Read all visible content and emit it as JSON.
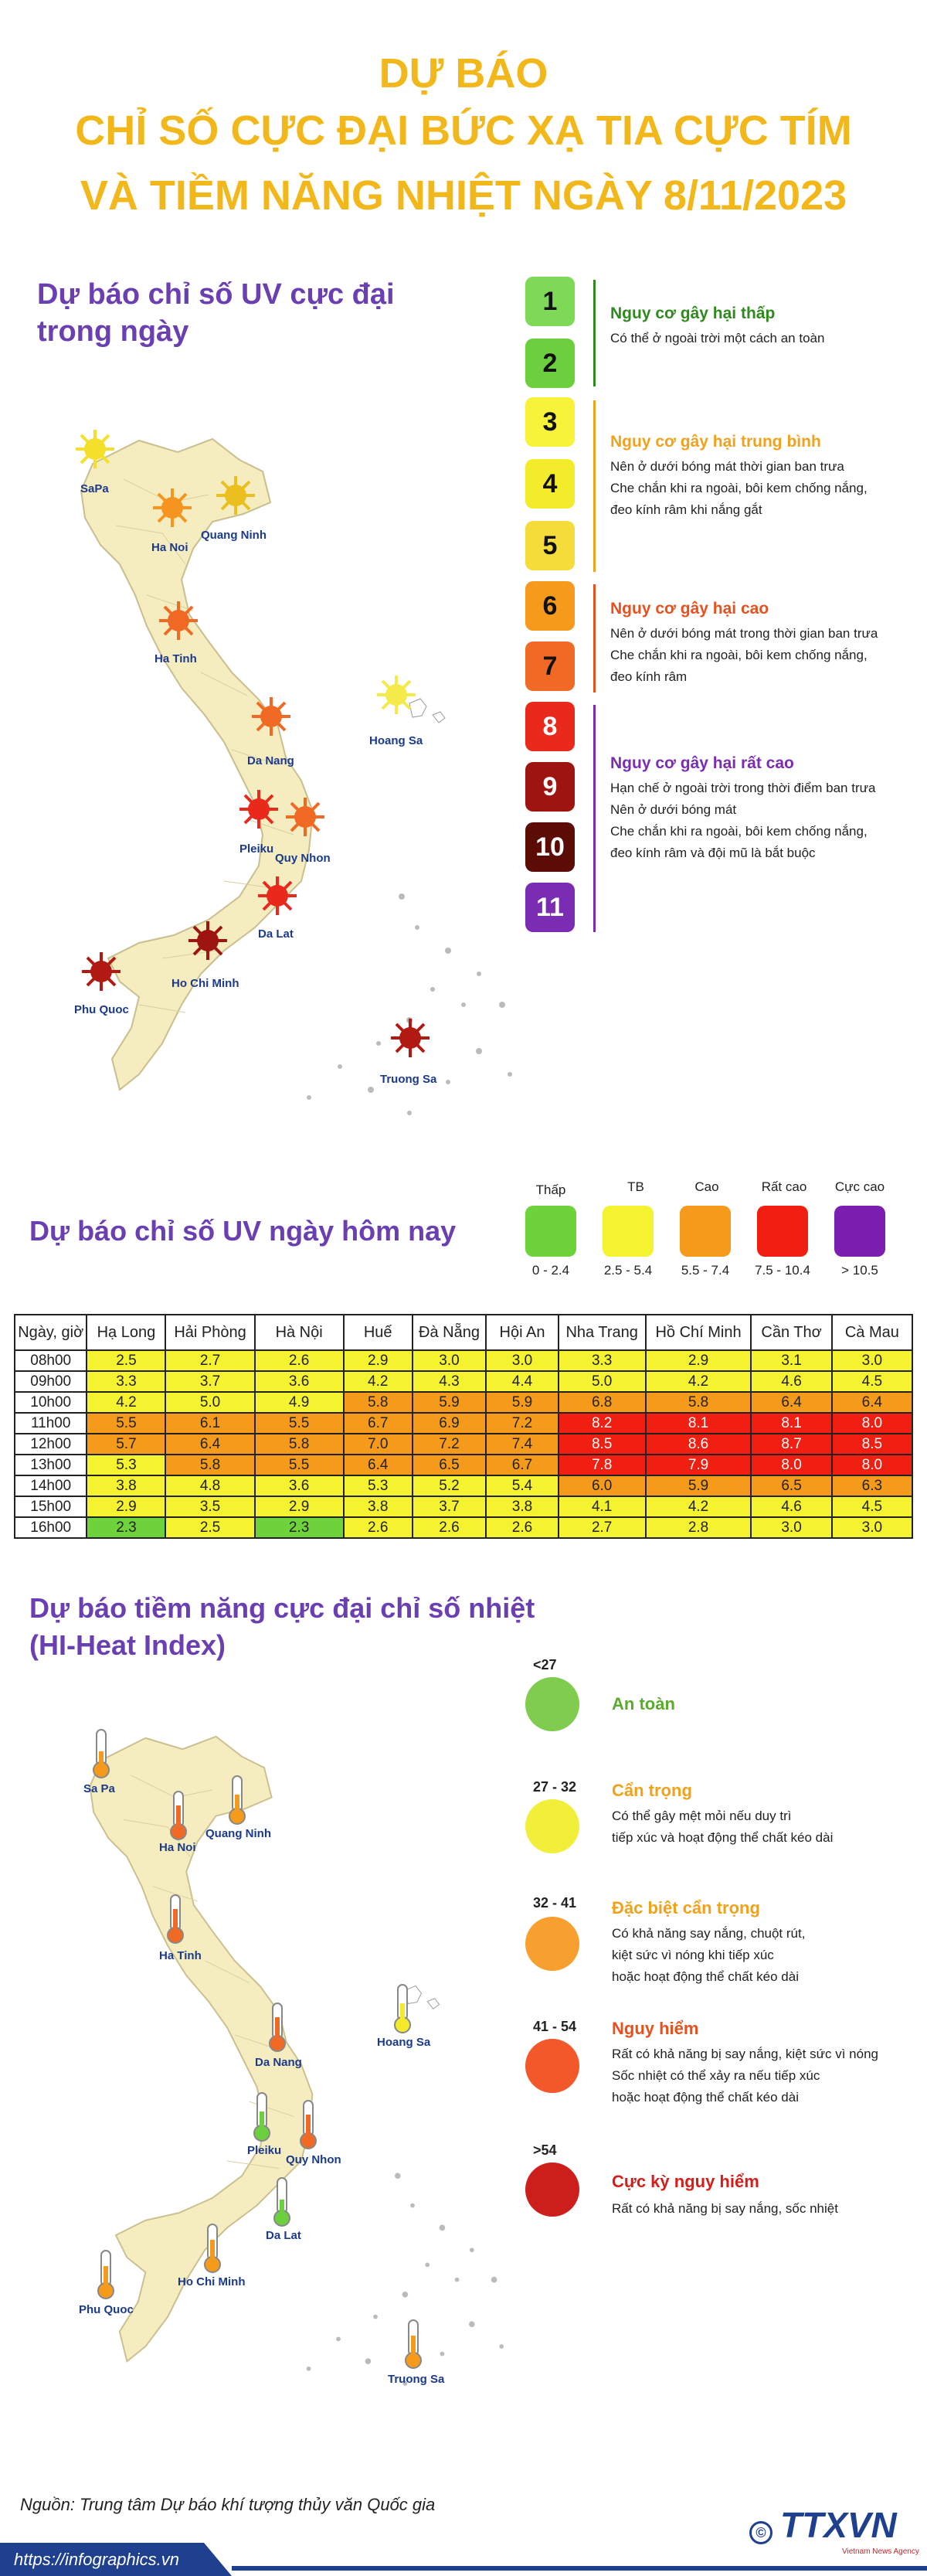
{
  "title": {
    "line1": "DỰ BÁO",
    "line2": "CHỈ SỐ CỰC ĐẠI BỨC XẠ TIA CỰC TÍM",
    "line3": "VÀ TIỀM NĂNG NHIỆT NGÀY 8/11/2023"
  },
  "uv_max": {
    "heading_line1": "Dự báo chỉ số UV cực đại",
    "heading_line2": "trong ngày",
    "scale": [
      {
        "value": "1",
        "color": "#7ed957"
      },
      {
        "value": "2",
        "color": "#6ccf3e"
      },
      {
        "value": "3",
        "color": "#f7f23a"
      },
      {
        "value": "4",
        "color": "#f2ec2a"
      },
      {
        "value": "5",
        "color": "#f5dc3a"
      },
      {
        "value": "6",
        "color": "#f59a1b"
      },
      {
        "value": "7",
        "color": "#f06a25"
      },
      {
        "value": "8",
        "color": "#e8291c"
      },
      {
        "value": "9",
        "color": "#9e1411"
      },
      {
        "value": "10",
        "color": "#5a0c05"
      },
      {
        "value": "11",
        "color": "#7a2db2"
      }
    ],
    "risks": [
      {
        "title": "Nguy cơ gây hại thấp",
        "color": "#2f8a1e",
        "lines": [
          "Có thể ở ngoài trời một cách an toàn"
        ]
      },
      {
        "title": "Nguy cơ gây hại trung bình",
        "color": "#f0a21b",
        "lines": [
          "Nên ở dưới bóng mát thời gian ban trưa",
          "Che chắn khi ra ngoài, bôi kem chống nắng,",
          "đeo kính râm khi nắng gắt"
        ]
      },
      {
        "title": "Nguy cơ gây hại cao",
        "color": "#e8501d",
        "lines": [
          "Nên ở dưới bóng mát trong thời gian ban trưa",
          "Che chắn khi ra ngoài, bôi kem chống nắng,",
          "đeo kính râm"
        ]
      },
      {
        "title": "Nguy cơ gây hại rất cao",
        "color": "#7a2db2",
        "lines": [
          "Hạn chế ở ngoài trời trong thời điểm ban trưa",
          "Nên ở dưới bóng mát",
          "Che chắn khi ra ngoài, bôi kem chống nắng,",
          "đeo kính râm và đội mũ là bắt buộc"
        ]
      }
    ],
    "cities": [
      "SaPa",
      "Ha Noi",
      "Quang Ninh",
      "Ha Tinh",
      "Hoang Sa",
      "Da Nang",
      "Pleiku",
      "Quy Nhon",
      "Da Lat",
      "Ho Chi Minh",
      "Phu Quoc",
      "Truong Sa"
    ]
  },
  "uv_today": {
    "heading": "Dự báo chỉ số UV ngày hôm nay",
    "legend": [
      {
        "label": "Thấp",
        "range": "0 - 2.4",
        "color": "#6ed23a"
      },
      {
        "label": "TB",
        "range": "2.5 - 5.4",
        "color": "#f5f230"
      },
      {
        "label": "Cao",
        "range": "5.5 - 7.4",
        "color": "#f59a1b"
      },
      {
        "label": "Rất cao",
        "range": "7.5 - 10.4",
        "color": "#f01f12"
      },
      {
        "label": "Cực cao",
        "range": "> 10.5",
        "color": "#7a1fb0"
      }
    ],
    "table": {
      "headers": [
        "Ngày, giờ",
        "Hạ Long",
        "Hải Phòng",
        "Hà Nội",
        "Huế",
        "Đà Nẵng",
        "Hội An",
        "Nha Trang",
        "Hồ Chí Minh",
        "Cần Thơ",
        "Cà Mau"
      ],
      "rows": [
        [
          "08h00",
          "2.5",
          "2.7",
          "2.6",
          "2.9",
          "3.0",
          "3.0",
          "3.3",
          "2.9",
          "3.1",
          "3.0"
        ],
        [
          "09h00",
          "3.3",
          "3.7",
          "3.6",
          "4.2",
          "4.3",
          "4.4",
          "5.0",
          "4.2",
          "4.6",
          "4.5"
        ],
        [
          "10h00",
          "4.2",
          "5.0",
          "4.9",
          "5.8",
          "5.9",
          "5.9",
          "6.8",
          "5.8",
          "6.4",
          "6.4"
        ],
        [
          "11h00",
          "5.5",
          "6.1",
          "5.5",
          "6.7",
          "6.9",
          "7.2",
          "8.2",
          "8.1",
          "8.1",
          "8.0"
        ],
        [
          "12h00",
          "5.7",
          "6.4",
          "5.8",
          "7.0",
          "7.2",
          "7.4",
          "8.5",
          "8.6",
          "8.7",
          "8.5"
        ],
        [
          "13h00",
          "5.3",
          "5.8",
          "5.5",
          "6.4",
          "6.5",
          "6.7",
          "7.8",
          "7.9",
          "8.0",
          "8.0"
        ],
        [
          "14h00",
          "3.8",
          "4.8",
          "3.6",
          "5.3",
          "5.2",
          "5.4",
          "6.0",
          "5.9",
          "6.5",
          "6.3"
        ],
        [
          "15h00",
          "2.9",
          "3.5",
          "2.9",
          "3.8",
          "3.7",
          "3.8",
          "4.1",
          "4.2",
          "4.6",
          "4.5"
        ],
        [
          "16h00",
          "2.3",
          "2.5",
          "2.3",
          "2.6",
          "2.6",
          "2.6",
          "2.7",
          "2.8",
          "3.0",
          "3.0"
        ]
      ]
    }
  },
  "heat": {
    "heading_line1": "Dự báo tiềm năng cực đại chỉ số nhiệt",
    "heading_line2": "(HI-Heat Index)",
    "levels": [
      {
        "range": "<27",
        "title": "An toàn",
        "color": "#7fcc4f",
        "title_color": "#5aab2d",
        "lines": []
      },
      {
        "range": "27 - 32",
        "title": "Cẩn trọng",
        "color": "#f2ef3a",
        "title_color": "#f0a21b",
        "lines": [
          "Có thể gây mệt mỏi nếu duy trì",
          "tiếp xúc và hoạt động thể chất kéo dài"
        ]
      },
      {
        "range": "32 - 41",
        "title": "Đặc biệt cẩn trọng",
        "color": "#f7a030",
        "title_color": "#f0a21b",
        "lines": [
          "Có khả năng say nắng, chuột rút,",
          "kiệt sức vì nóng khi tiếp xúc",
          "hoặc hoạt động thể chất kéo dài"
        ]
      },
      {
        "range": "41 - 54",
        "title": "Nguy hiểm",
        "color": "#f2582a",
        "title_color": "#e8501d",
        "lines": [
          "Rất có khả năng bị say nắng, kiệt sức vì nóng",
          "Sốc nhiệt có thể xảy ra nếu tiếp xúc",
          "hoặc hoạt động thể chất kéo dài"
        ]
      },
      {
        "range": ">54",
        "title": "Cực kỳ nguy hiểm",
        "color": "#cc1f1c",
        "title_color": "#d21f1c",
        "lines": [
          "Rất có khả năng bị say nắng, sốc nhiệt"
        ]
      }
    ],
    "cities": [
      "Sa Pa",
      "Ha Noi",
      "Quang Ninh",
      "Ha Tinh",
      "Hoang Sa",
      "Da Nang",
      "Pleiku",
      "Quy Nhon",
      "Da Lat",
      "Ho Chi Minh",
      "Phu Quoc",
      "Truong Sa"
    ]
  },
  "source": "Nguồn: Trung tâm Dự báo khí tượng thủy văn Quốc gia",
  "footer_url": "https://infographics.vn",
  "logo": {
    "mark": "©",
    "text": "TTXVN",
    "sub": "Vietnam News Agency"
  }
}
